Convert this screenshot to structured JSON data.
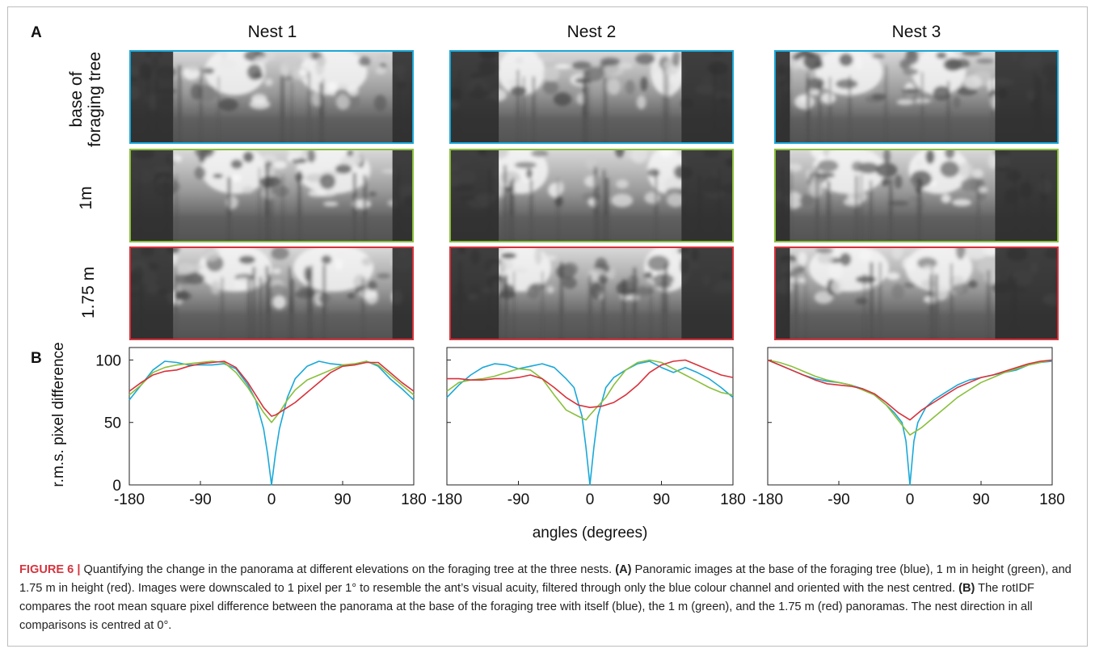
{
  "panel_a_label": "A",
  "panel_b_label": "B",
  "nests": [
    "Nest 1",
    "Nest 2",
    "Nest 3"
  ],
  "row_labels": {
    "base_line1": "base of",
    "base_line2": "foraging tree",
    "mid": "1m",
    "top": "1.75 m"
  },
  "colors": {
    "blue": "#1aa8d8",
    "green": "#8abf3c",
    "red": "#d8313b"
  },
  "chart_data": [
    {
      "type": "line",
      "title": "Nest 1",
      "ylabel": "r.m.s. pixel difference",
      "xlabel": "angles (degrees)",
      "xlim": [
        -180,
        180
      ],
      "ylim": [
        0,
        110
      ],
      "xticks": [
        "-180",
        "-90",
        "0",
        "90",
        "180"
      ],
      "yticks": [
        "0",
        "50",
        "100"
      ],
      "series": [
        {
          "color": "#1aa8d8",
          "x": [
            -180,
            -165,
            -150,
            -135,
            -120,
            -105,
            -90,
            -75,
            -60,
            -45,
            -30,
            -20,
            -10,
            -5,
            0,
            5,
            10,
            20,
            30,
            45,
            60,
            75,
            90,
            105,
            120,
            135,
            150,
            165,
            180
          ],
          "y": [
            68,
            80,
            92,
            99,
            98,
            96,
            96,
            96,
            97,
            93,
            80,
            68,
            45,
            25,
            0,
            25,
            45,
            70,
            85,
            95,
            99,
            97,
            96,
            96,
            99,
            95,
            85,
            77,
            68
          ]
        },
        {
          "color": "#8abf3c",
          "x": [
            -180,
            -165,
            -150,
            -135,
            -120,
            -105,
            -90,
            -75,
            -60,
            -45,
            -30,
            -20,
            -10,
            0,
            10,
            20,
            30,
            45,
            60,
            75,
            90,
            105,
            120,
            135,
            150,
            165,
            180
          ],
          "y": [
            72,
            80,
            90,
            94,
            96,
            97,
            98,
            99,
            98,
            90,
            78,
            68,
            58,
            50,
            58,
            68,
            76,
            84,
            88,
            92,
            96,
            97,
            99,
            96,
            88,
            80,
            72
          ]
        },
        {
          "color": "#d8313b",
          "x": [
            -180,
            -165,
            -150,
            -135,
            -120,
            -105,
            -90,
            -75,
            -60,
            -45,
            -30,
            -20,
            -10,
            0,
            5,
            10,
            20,
            30,
            45,
            60,
            75,
            90,
            105,
            120,
            135,
            150,
            165,
            180
          ],
          "y": [
            75,
            82,
            88,
            91,
            92,
            95,
            97,
            98,
            99,
            94,
            82,
            72,
            62,
            55,
            56,
            58,
            62,
            66,
            74,
            82,
            90,
            95,
            96,
            98,
            98,
            90,
            82,
            75
          ]
        }
      ]
    },
    {
      "type": "line",
      "title": "Nest 2",
      "xlim": [
        -180,
        180
      ],
      "ylim": [
        0,
        110
      ],
      "xticks": [
        "-180",
        "-90",
        "0",
        "90",
        "180"
      ],
      "series": [
        {
          "color": "#1aa8d8",
          "x": [
            -180,
            -165,
            -150,
            -135,
            -120,
            -105,
            -90,
            -75,
            -60,
            -45,
            -30,
            -20,
            -10,
            -5,
            0,
            5,
            10,
            20,
            30,
            45,
            60,
            75,
            90,
            105,
            120,
            135,
            150,
            165,
            180
          ],
          "y": [
            70,
            80,
            88,
            94,
            97,
            96,
            93,
            95,
            97,
            94,
            85,
            78,
            55,
            30,
            0,
            30,
            55,
            78,
            86,
            92,
            97,
            99,
            94,
            90,
            94,
            90,
            85,
            78,
            70
          ]
        },
        {
          "color": "#8abf3c",
          "x": [
            -180,
            -165,
            -150,
            -135,
            -120,
            -105,
            -90,
            -75,
            -60,
            -45,
            -30,
            -15,
            -5,
            0,
            10,
            20,
            30,
            45,
            60,
            75,
            90,
            105,
            120,
            135,
            150,
            165,
            180
          ],
          "y": [
            75,
            82,
            84,
            85,
            87,
            90,
            93,
            92,
            85,
            72,
            60,
            55,
            52,
            56,
            63,
            70,
            80,
            92,
            98,
            100,
            98,
            93,
            88,
            83,
            78,
            74,
            72
          ]
        },
        {
          "color": "#d8313b",
          "x": [
            -180,
            -165,
            -150,
            -135,
            -120,
            -105,
            -90,
            -75,
            -60,
            -45,
            -30,
            -15,
            0,
            15,
            30,
            45,
            60,
            75,
            90,
            105,
            120,
            135,
            150,
            165,
            180
          ],
          "y": [
            85,
            85,
            84,
            84,
            85,
            85,
            86,
            88,
            85,
            78,
            70,
            64,
            62,
            63,
            66,
            72,
            80,
            90,
            96,
            99,
            100,
            96,
            92,
            88,
            86
          ]
        }
      ]
    },
    {
      "type": "line",
      "title": "Nest 3",
      "xlim": [
        -180,
        180
      ],
      "ylim": [
        0,
        110
      ],
      "xticks": [
        "-180",
        "-90",
        "0",
        "90",
        "180"
      ],
      "series": [
        {
          "color": "#1aa8d8",
          "x": [
            -180,
            -165,
            -150,
            -135,
            -120,
            -105,
            -90,
            -75,
            -60,
            -45,
            -30,
            -20,
            -10,
            -5,
            0,
            5,
            10,
            20,
            30,
            45,
            60,
            75,
            90,
            105,
            120,
            135,
            150,
            165,
            180
          ],
          "y": [
            100,
            96,
            92,
            88,
            85,
            83,
            82,
            80,
            77,
            72,
            64,
            58,
            50,
            35,
            0,
            35,
            50,
            62,
            68,
            74,
            80,
            84,
            86,
            88,
            90,
            92,
            96,
            98,
            99
          ]
        },
        {
          "color": "#8abf3c",
          "x": [
            -180,
            -165,
            -150,
            -135,
            -120,
            -105,
            -90,
            -75,
            -60,
            -45,
            -30,
            -15,
            0,
            15,
            30,
            45,
            60,
            75,
            90,
            105,
            120,
            135,
            150,
            165,
            180
          ],
          "y": [
            100,
            98,
            95,
            91,
            87,
            84,
            82,
            80,
            76,
            72,
            64,
            52,
            40,
            46,
            54,
            62,
            70,
            76,
            82,
            86,
            90,
            93,
            96,
            98,
            100
          ]
        },
        {
          "color": "#d8313b",
          "x": [
            -180,
            -165,
            -150,
            -135,
            -120,
            -105,
            -90,
            -75,
            -60,
            -45,
            -30,
            -15,
            0,
            15,
            30,
            45,
            60,
            75,
            90,
            105,
            120,
            135,
            150,
            165,
            180
          ],
          "y": [
            100,
            96,
            92,
            88,
            84,
            81,
            80,
            79,
            77,
            73,
            66,
            58,
            52,
            60,
            66,
            72,
            78,
            82,
            86,
            88,
            91,
            94,
            97,
            99,
            100
          ]
        }
      ]
    }
  ],
  "caption": {
    "label": "FIGURE 6 |",
    "intro": " Quantifying the change in the panorama at different elevations on the foraging tree at the three nests. ",
    "a_tag": "(A)",
    "a_text": " Panoramic images at the base of the foraging tree (blue), 1 m in height (green), and 1.75 m in height (red). Images were downscaled to 1 pixel per 1° to resemble the ant’s visual acuity, filtered through only the blue colour channel and oriented with the nest centred. ",
    "b_tag": "(B)",
    "b_text": " The rotIDF compares the root mean square pixel difference between the panorama at the base of the foraging tree with itself (blue), the 1 m (green), and the 1.75 m (red) panoramas. The nest direction in all comparisons is centred at 0°."
  }
}
